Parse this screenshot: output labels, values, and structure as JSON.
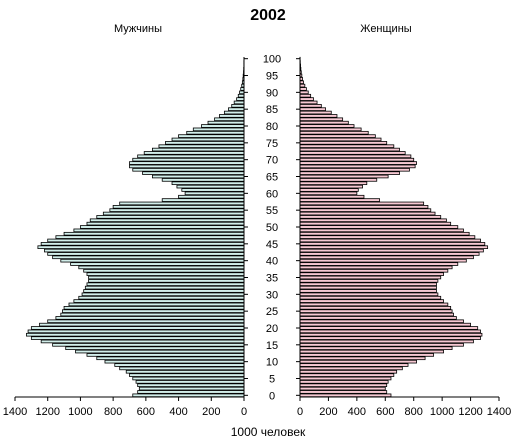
{
  "chart_data": {
    "type": "bar",
    "title": "2002",
    "left_label": "Мужчины",
    "right_label": "Женщины",
    "xlabel": "1000 человек",
    "ages": [
      0,
      1,
      2,
      3,
      4,
      5,
      6,
      7,
      8,
      9,
      10,
      11,
      12,
      13,
      14,
      15,
      16,
      17,
      18,
      19,
      20,
      21,
      22,
      23,
      24,
      25,
      26,
      27,
      28,
      29,
      30,
      31,
      32,
      33,
      34,
      35,
      36,
      37,
      38,
      39,
      40,
      41,
      42,
      43,
      44,
      45,
      46,
      47,
      48,
      49,
      50,
      51,
      52,
      53,
      54,
      55,
      56,
      57,
      58,
      59,
      60,
      61,
      62,
      63,
      64,
      65,
      66,
      67,
      68,
      69,
      70,
      71,
      72,
      73,
      74,
      75,
      76,
      77,
      78,
      79,
      80,
      81,
      82,
      83,
      84,
      85,
      86,
      87,
      88,
      89,
      90,
      91,
      92,
      93,
      94,
      95,
      96,
      97,
      98,
      99,
      100
    ],
    "age_ticks": [
      "0",
      "5",
      "10",
      "15",
      "20",
      "25",
      "30",
      "35",
      "40",
      "45",
      "50",
      "55",
      "60",
      "65",
      "70",
      "75",
      "80",
      "85",
      "90",
      "95",
      "100"
    ],
    "male_ticks": [
      "1400",
      "1200",
      "1000",
      "800",
      "600",
      "400",
      "200",
      "0"
    ],
    "female_ticks": [
      "0",
      "200",
      "400",
      "600",
      "800",
      "1000",
      "1200",
      "1400"
    ],
    "xlim": [
      0,
      1450
    ],
    "series": [
      {
        "name": "Мужчины",
        "values": [
          680,
          650,
          640,
          650,
          660,
          680,
          700,
          720,
          760,
          790,
          850,
          900,
          960,
          1030,
          1090,
          1170,
          1240,
          1300,
          1330,
          1320,
          1300,
          1250,
          1200,
          1150,
          1120,
          1110,
          1100,
          1070,
          1040,
          1010,
          990,
          980,
          970,
          960,
          950,
          950,
          960,
          980,
          1010,
          1060,
          1120,
          1170,
          1200,
          1220,
          1260,
          1240,
          1200,
          1150,
          1100,
          1040,
          1000,
          960,
          940,
          900,
          860,
          820,
          800,
          760,
          500,
          400,
          360,
          380,
          410,
          440,
          500,
          560,
          620,
          680,
          700,
          700,
          680,
          650,
          610,
          560,
          520,
          480,
          440,
          400,
          350,
          310,
          260,
          220,
          180,
          150,
          120,
          95,
          75,
          60,
          45,
          35,
          27,
          20,
          14,
          10,
          7,
          5,
          3,
          2,
          1,
          1,
          0
        ]
      },
      {
        "name": "Женщины",
        "values": [
          640,
          610,
          600,
          610,
          620,
          640,
          660,
          680,
          720,
          760,
          820,
          880,
          940,
          1010,
          1070,
          1150,
          1220,
          1270,
          1280,
          1270,
          1250,
          1200,
          1150,
          1100,
          1080,
          1070,
          1060,
          1040,
          1010,
          990,
          970,
          960,
          960,
          960,
          970,
          990,
          1010,
          1040,
          1070,
          1110,
          1170,
          1220,
          1260,
          1290,
          1320,
          1300,
          1270,
          1230,
          1190,
          1150,
          1110,
          1060,
          1030,
          990,
          950,
          920,
          900,
          870,
          560,
          450,
          400,
          410,
          440,
          470,
          540,
          620,
          700,
          770,
          810,
          820,
          800,
          780,
          740,
          700,
          660,
          610,
          570,
          530,
          480,
          430,
          380,
          340,
          300,
          260,
          220,
          180,
          150,
          120,
          95,
          75,
          58,
          45,
          34,
          25,
          18,
          13,
          9,
          6,
          4,
          2,
          1
        ]
      }
    ],
    "male_color": "#d2eeea",
    "female_color": "#f6c8d2",
    "edge_color": "#000000"
  }
}
